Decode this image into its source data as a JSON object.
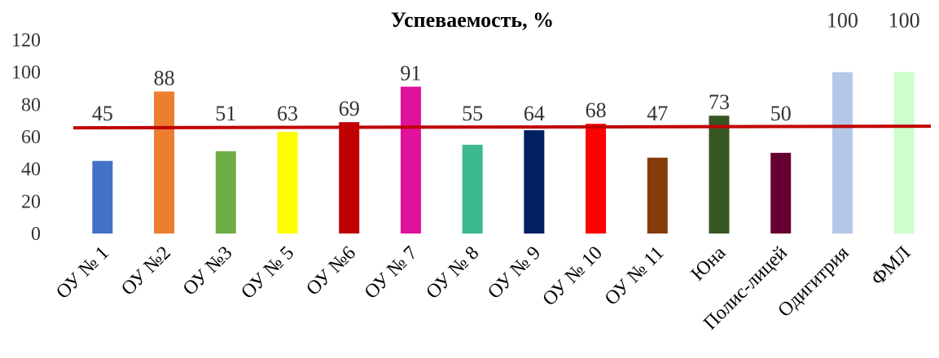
{
  "chart_data": {
    "type": "bar",
    "title": "Успеваемость, %",
    "categories": [
      "ОУ № 1",
      "ОУ №2",
      "ОУ №3",
      "ОУ № 5",
      "ОУ №6",
      "ОУ № 7",
      "ОУ № 8",
      "ОУ № 9",
      "ОУ № 10",
      "ОУ № 11",
      "Юна",
      "Полис-лицей",
      "Одигитрия",
      "ФМЛ"
    ],
    "values": [
      45,
      88,
      51,
      63,
      69,
      91,
      55,
      64,
      68,
      47,
      73,
      50,
      100,
      100
    ],
    "colors": [
      "#4472C4",
      "#ED7D31",
      "#70AD47",
      "#FFFF00",
      "#C00000",
      "#E0119D",
      "#3CB98F",
      "#002060",
      "#FF0000",
      "#843C0C",
      "#375623",
      "#660033",
      "#B4C7E7",
      "#CCFFCC"
    ],
    "reference_line": {
      "value": 66,
      "color": "#C00000"
    },
    "ylim": [
      0,
      120
    ],
    "yticks": [
      0,
      20,
      40,
      60,
      80,
      100,
      120
    ],
    "grid": false,
    "xlabel": "",
    "ylabel": ""
  }
}
